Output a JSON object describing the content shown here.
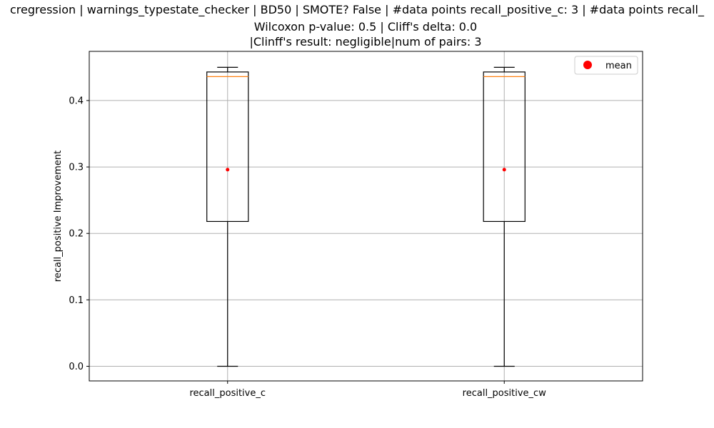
{
  "chart_data": {
    "type": "box",
    "title_lines": [
      "cregression | warnings_typestate_checker | BD50 | SMOTE? False | #data points recall_positive_c: 3 | #data points recall_",
      "Wilcoxon p-value: 0.5 | Cliff's delta: 0.0",
      "|Clinff's result: negligible|num of pairs: 3"
    ],
    "xlabel": "",
    "ylabel": "recall_positive Improvement",
    "ylim": [
      -0.022,
      0.474
    ],
    "yticks": [
      0.0,
      0.1,
      0.2,
      0.3,
      0.4
    ],
    "ytick_labels": [
      "0.0",
      "0.1",
      "0.2",
      "0.3",
      "0.4"
    ],
    "grid": true,
    "legend": {
      "position": "top-right",
      "entries": [
        {
          "label": "mean",
          "marker": "circle",
          "color": "#ff0000"
        }
      ]
    },
    "colors": {
      "box": "#000000",
      "median": "#ff7f0e",
      "mean": "#ff0000",
      "grid": "#b0b0b0"
    },
    "categories": [
      "recall_positive_c",
      "recall_positive_cw"
    ],
    "boxes": [
      {
        "name": "recall_positive_c",
        "whisker_low": 0.0,
        "q1": 0.218,
        "median": 0.436,
        "q3": 0.443,
        "whisker_high": 0.45,
        "mean": 0.296
      },
      {
        "name": "recall_positive_cw",
        "whisker_low": 0.0,
        "q1": 0.218,
        "median": 0.436,
        "q3": 0.443,
        "whisker_high": 0.45,
        "mean": 0.296
      }
    ]
  }
}
